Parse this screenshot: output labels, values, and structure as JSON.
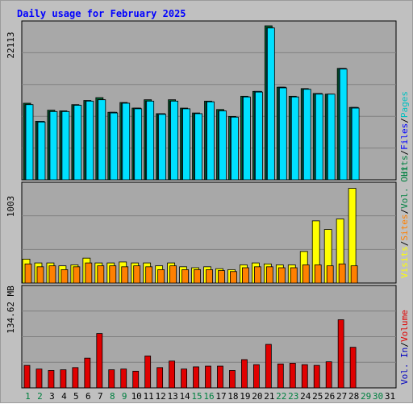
{
  "title": "Daily usage for February 2025",
  "colors": {
    "hits": "#006030",
    "files": "#00a0e0",
    "pages": "#00e0ff",
    "visits": "#ffff00",
    "sites": "#ff8000",
    "volume": "#e00000",
    "volout": "#008080",
    "volin": "#0000c0",
    "title": "#0000ff",
    "weekend": "#008040",
    "weekday": "#000000",
    "panel_bg": "#c0c0c0",
    "chart_bg": "#a8a8a8"
  },
  "right_legends": {
    "top": [
      {
        "text": "Hits",
        "color": "#008040"
      },
      {
        "text": "/",
        "color": "#000000"
      },
      {
        "text": "Files",
        "color": "#0000ff"
      },
      {
        "text": "/",
        "color": "#000000"
      },
      {
        "text": "Pages",
        "color": "#00c0c0"
      }
    ],
    "middle": [
      {
        "text": "Visits",
        "color": "#ffff00"
      },
      {
        "text": "/",
        "color": "#000000"
      },
      {
        "text": "Sites",
        "color": "#ff8000"
      },
      {
        "text": "/",
        "color": "#000000"
      },
      {
        "text": "Vol. Out",
        "color": "#008040"
      }
    ],
    "bottom": [
      {
        "text": "Vol. In",
        "color": "#0000c0"
      },
      {
        "text": "/",
        "color": "#000000"
      },
      {
        "text": "Volume",
        "color": "#e00000"
      }
    ]
  },
  "chart_data": [
    {
      "type": "bar",
      "panel": "top",
      "ylabel": "22113",
      "ylim": [
        0,
        22113
      ],
      "categories": [
        "1",
        "2",
        "3",
        "4",
        "5",
        "6",
        "7",
        "8",
        "9",
        "10",
        "11",
        "12",
        "13",
        "14",
        "15",
        "16",
        "17",
        "18",
        "19",
        "20",
        "21",
        "22",
        "23",
        "24",
        "25",
        "26",
        "27",
        "28"
      ],
      "series": [
        {
          "name": "Hits",
          "values": [
            11000,
            8400,
            10000,
            9900,
            10800,
            11400,
            11800,
            9700,
            11100,
            10300,
            11500,
            9500,
            11500,
            10300,
            9600,
            11300,
            10100,
            9100,
            12000,
            12700,
            22113,
            13300,
            12000,
            13100,
            12400,
            12300,
            16000,
            10400
          ]
        },
        {
          "name": "Files",
          "values": [
            10800,
            8400,
            9800,
            9800,
            10700,
            11300,
            11500,
            9700,
            11000,
            10300,
            11300,
            9500,
            11300,
            10200,
            9500,
            11200,
            9900,
            9000,
            11900,
            12700,
            21800,
            13300,
            11900,
            13000,
            12400,
            12300,
            16000,
            10400
          ]
        },
        {
          "name": "Pages",
          "values": [
            10800,
            8300,
            9800,
            9800,
            10700,
            11300,
            11500,
            9600,
            11000,
            10200,
            11300,
            9400,
            11300,
            10200,
            9500,
            11200,
            9900,
            9000,
            11900,
            12600,
            21800,
            13200,
            11900,
            13000,
            12300,
            12300,
            15900,
            10300
          ]
        }
      ],
      "grid": true
    },
    {
      "type": "bar",
      "panel": "middle",
      "ylabel": "1003",
      "ylim": [
        0,
        1003
      ],
      "categories": [
        "1",
        "2",
        "3",
        "4",
        "5",
        "6",
        "7",
        "8",
        "9",
        "10",
        "11",
        "12",
        "13",
        "14",
        "15",
        "16",
        "17",
        "18",
        "19",
        "20",
        "21",
        "22",
        "23",
        "24",
        "25",
        "26",
        "27",
        "28"
      ],
      "series": [
        {
          "name": "Visits",
          "values": [
            250,
            210,
            210,
            180,
            190,
            260,
            210,
            210,
            220,
            210,
            210,
            180,
            210,
            170,
            160,
            170,
            150,
            140,
            190,
            210,
            200,
            190,
            190,
            330,
            650,
            560,
            670,
            990
          ]
        },
        {
          "name": "Sites",
          "values": [
            200,
            170,
            180,
            140,
            170,
            210,
            180,
            180,
            170,
            180,
            170,
            140,
            180,
            140,
            140,
            140,
            130,
            120,
            160,
            170,
            170,
            160,
            160,
            190,
            190,
            180,
            200,
            180
          ]
        }
      ],
      "grid": true
    },
    {
      "type": "bar",
      "panel": "bottom",
      "ylabel": "134.62 MB",
      "ylim": [
        0,
        134.62
      ],
      "categories": [
        "1",
        "2",
        "3",
        "4",
        "5",
        "6",
        "7",
        "8",
        "9",
        "10",
        "11",
        "12",
        "13",
        "14",
        "15",
        "16",
        "17",
        "18",
        "19",
        "20",
        "21",
        "22",
        "23",
        "24",
        "25",
        "26",
        "27",
        "28"
      ],
      "series": [
        {
          "name": "Volume",
          "values": [
            31,
            26,
            24,
            25,
            28,
            41,
            75,
            25,
            26,
            23,
            44,
            28,
            37,
            26,
            29,
            30,
            30,
            24,
            39,
            32,
            60,
            33,
            34,
            32,
            31,
            36,
            94,
            56
          ]
        }
      ],
      "grid": true
    }
  ],
  "day_labels": [
    {
      "text": "1",
      "weekend": true
    },
    {
      "text": "2",
      "weekend": true
    },
    {
      "text": "3",
      "weekend": false
    },
    {
      "text": "4",
      "weekend": false
    },
    {
      "text": "5",
      "weekend": false
    },
    {
      "text": "6",
      "weekend": false
    },
    {
      "text": "7",
      "weekend": false
    },
    {
      "text": "8",
      "weekend": true
    },
    {
      "text": "9",
      "weekend": true
    },
    {
      "text": "10",
      "weekend": false
    },
    {
      "text": "11",
      "weekend": false
    },
    {
      "text": "12",
      "weekend": false
    },
    {
      "text": "13",
      "weekend": false
    },
    {
      "text": "14",
      "weekend": false
    },
    {
      "text": "15",
      "weekend": true
    },
    {
      "text": "16",
      "weekend": true
    },
    {
      "text": "17",
      "weekend": false
    },
    {
      "text": "18",
      "weekend": false
    },
    {
      "text": "19",
      "weekend": false
    },
    {
      "text": "20",
      "weekend": false
    },
    {
      "text": "21",
      "weekend": false
    },
    {
      "text": "22",
      "weekend": true
    },
    {
      "text": "23",
      "weekend": true
    },
    {
      "text": "24",
      "weekend": false
    },
    {
      "text": "25",
      "weekend": false
    },
    {
      "text": "26",
      "weekend": false
    },
    {
      "text": "27",
      "weekend": false
    },
    {
      "text": "28",
      "weekend": false
    },
    {
      "text": "29",
      "weekend": true
    },
    {
      "text": "30",
      "weekend": true
    },
    {
      "text": "31",
      "weekend": false
    }
  ]
}
